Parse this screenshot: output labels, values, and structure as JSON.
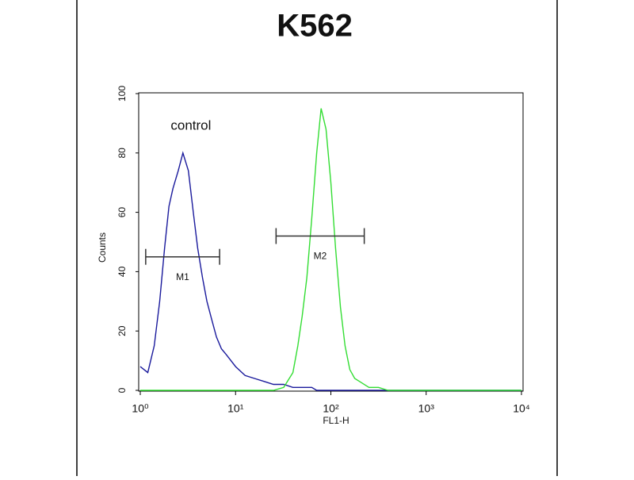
{
  "chart_data": {
    "type": "line",
    "title": "K562",
    "x_label": "FL1-H",
    "y_label": "Counts",
    "log_x": true,
    "xlim": [
      1,
      10000
    ],
    "xticks": [
      {
        "value": 1,
        "label": "10⁰"
      },
      {
        "value": 10,
        "label": "10¹"
      },
      {
        "value": 100,
        "label": "10²"
      },
      {
        "value": 1000,
        "label": "10³"
      },
      {
        "value": 10000,
        "label": "10⁴"
      }
    ],
    "ylim": [
      0,
      100
    ],
    "yticks": [
      0,
      20,
      40,
      60,
      80,
      100
    ],
    "x": [
      1,
      1.2,
      1.4,
      1.6,
      1.8,
      2,
      2.2,
      2.5,
      2.8,
      3.2,
      3.6,
      4,
      4.5,
      5,
      5.6,
      6.3,
      7.1,
      8,
      10,
      12.6,
      15.8,
      20,
      25,
      32,
      40,
      45,
      50,
      56,
      63,
      71,
      79,
      89,
      100,
      112,
      126,
      141,
      158,
      178,
      200,
      251,
      316,
      398,
      501,
      1000,
      10000
    ],
    "series": [
      {
        "name": "control",
        "color": "#1a1a9c",
        "values": [
          8,
          6,
          15,
          30,
          48,
          62,
          68,
          74,
          80,
          74,
          60,
          48,
          38,
          30,
          24,
          18,
          14,
          12,
          8,
          5,
          4,
          3,
          2,
          2,
          1,
          1,
          1,
          1,
          1,
          0,
          0,
          0,
          0,
          0,
          0,
          0,
          0,
          0,
          0,
          0,
          0,
          0,
          0,
          0,
          0
        ]
      },
      {
        "color": "#33dd33",
        "values": [
          0,
          0,
          0,
          0,
          0,
          0,
          0,
          0,
          0,
          0,
          0,
          0,
          0,
          0,
          0,
          0,
          0,
          0,
          0,
          0,
          0,
          0,
          0,
          1,
          6,
          15,
          25,
          38,
          58,
          80,
          95,
          88,
          70,
          48,
          28,
          15,
          7,
          4,
          3,
          1,
          1,
          0,
          0,
          0,
          0
        ]
      }
    ],
    "annotation": {
      "text": "control",
      "x": 3.4,
      "y": 89
    },
    "markers": [
      {
        "label": "M1",
        "x": [
          1.14,
          6.8
        ],
        "y": 45
      },
      {
        "label": "M2",
        "x": [
          26.6,
          224
        ],
        "y": 52
      }
    ]
  }
}
